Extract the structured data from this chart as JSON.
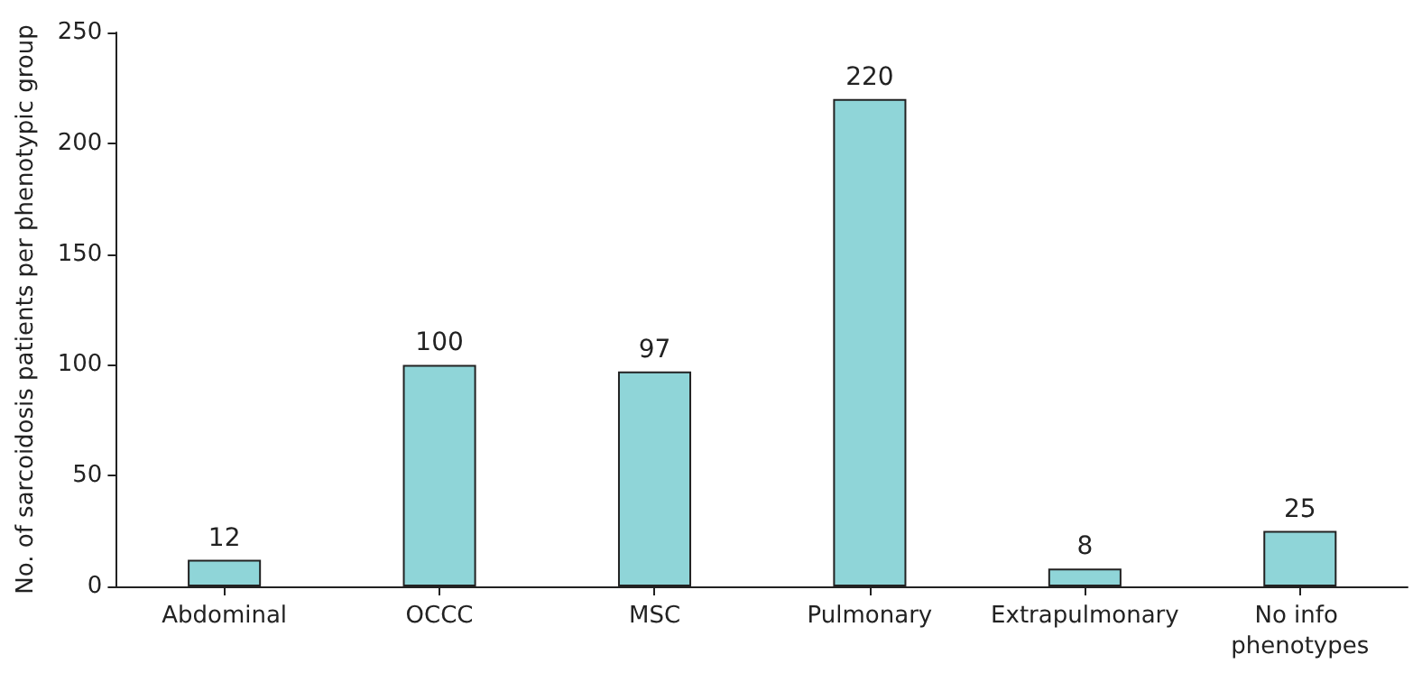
{
  "chart_data": {
    "type": "bar",
    "ylabel": "No. of sarcoidosis patients per phenotypic group",
    "categories": [
      "Abdominal",
      "OCCC",
      "MSC",
      "Pulmonary",
      "Extrapulmonary",
      "No info phenotypes"
    ],
    "values": [
      12,
      100,
      97,
      220,
      8,
      25
    ],
    "color": "#8fd5d8",
    "ylim": [
      0,
      250
    ],
    "yticks": [
      0,
      50,
      100,
      150,
      200,
      250
    ],
    "grid": false,
    "data_labels": true
  }
}
